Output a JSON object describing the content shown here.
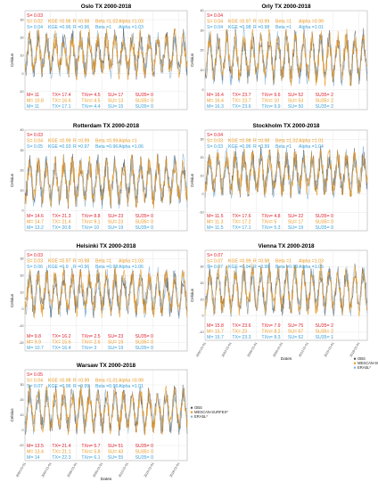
{
  "chart_data": [
    {
      "type": "line",
      "title": "Oslo TX 2000-2018",
      "ylabel": "Celsius",
      "ylim": [
        -20,
        35
      ],
      "yticks": [
        "30",
        "20",
        "10",
        "0",
        "-10"
      ],
      "x": [
        "2000-01-01",
        "2018-12-31"
      ],
      "top_stats": [
        [
          "S= 0.03"
        ],
        [
          "S= 0.02",
          "KGE =0.96",
          "R =0.98",
          "Beta =1.02",
          "Alpha =1.03"
        ],
        [
          "S= 0.04",
          "KGE =0.96",
          "R =0.96",
          "Beta =1",
          "Alpha =1.03"
        ]
      ],
      "bottom_stats": [
        [
          "M= 11",
          "TX= 17.4",
          "TXn= 4.5",
          "SU= 17",
          "SU35= 0"
        ],
        [
          "M= 10.8",
          "TX= 16.6",
          "TXn= 4.5",
          "SU= 13",
          "SU35= 0"
        ],
        [
          "M= 11",
          "TX= 17.1",
          "TXn= 4.4",
          "SU= 15",
          "SU35= 0"
        ]
      ],
      "series": [
        {
          "name": "OBS"
        },
        {
          "name": "MESCAN-SURFEX*"
        },
        {
          "name": "ERA5L*"
        }
      ]
    },
    {
      "type": "line",
      "title": "Orly TX 2000-2018",
      "ylabel": "Celsius",
      "ylim": [
        -10,
        40
      ],
      "yticks": [
        "40",
        "30",
        "20",
        "10",
        "0"
      ],
      "x": [
        "2000-01-01",
        "2018-12-31"
      ],
      "top_stats": [
        [
          "S= 0.04"
        ],
        [
          "S= 0.04",
          "KGE =0.97",
          "R =0.99",
          "Beta =1",
          "Alpha =0.99"
        ],
        [
          "S= 0.04",
          "KGE =0.98",
          "R =0.98",
          "Beta =1",
          "Alpha =1.01"
        ]
      ],
      "bottom_stats": [
        [
          "M= 16.4",
          "TX= 23.7",
          "TXn= 9.6",
          "SU= 52",
          "SU35= 2"
        ],
        [
          "M= 16.4",
          "TX= 23.7",
          "TXn= 10",
          "SU= 53",
          "SU35= 2"
        ],
        [
          "M= 16.3",
          "TX= 23.6",
          "TXn= 9.9",
          "SU= 50",
          "SU35= 2"
        ]
      ],
      "series": [
        {
          "name": "OBS"
        },
        {
          "name": "MESCAN-SURFEX*"
        },
        {
          "name": "ERA5L*"
        }
      ]
    },
    {
      "type": "line",
      "title": "Rotterdam TX 2000-2018",
      "ylabel": "Celsius",
      "ylim": [
        -10,
        40
      ],
      "yticks": [
        "40",
        "30",
        "20",
        "10",
        "0"
      ],
      "x": [
        "2000-01-01",
        "2018-12-31"
      ],
      "top_stats": [
        [
          "S= 0.03"
        ],
        [
          "S= 0.04",
          "KGE =0.99",
          "R =0.99",
          "Beta =0.99",
          "Alpha =1"
        ],
        [
          "S= 0.05",
          "KGE =0.93",
          "R =0.97",
          "Beta =0.96",
          "Alpha =1.06"
        ]
      ],
      "bottom_stats": [
        [
          "M= 14.6",
          "TX= 21.3",
          "TXn= 8.8",
          "SU= 23",
          "SU35= 0"
        ],
        [
          "M= 14.7",
          "TX= 21.4",
          "TXn= 9.1",
          "SU= 23",
          "SU35= 0"
        ],
        [
          "M= 13.2",
          "TX= 20.8",
          "TXn= 10",
          "SU= 19",
          "SU35= 0"
        ]
      ],
      "series": [
        {
          "name": "OBS"
        },
        {
          "name": "MESCAN-SURFEX*"
        },
        {
          "name": "ERA5L*"
        }
      ]
    },
    {
      "type": "line",
      "title": "Stockholm TX 2000-2018",
      "ylabel": "Celsius",
      "ylim": [
        -20,
        35
      ],
      "yticks": [
        "30",
        "20",
        "10",
        "0",
        "-10"
      ],
      "x": [
        "2000-01-01",
        "2018-12-31"
      ],
      "top_stats": [
        [
          "S= 0.04"
        ],
        [
          "S= 0.03",
          "KGE =0.98",
          "R =0.98",
          "Beta =1.02",
          "Alpha =1.01"
        ],
        [
          "S= 0.03",
          "KGE =0.96",
          "R =0.99",
          "Beta =1",
          "Alpha =1.04"
        ]
      ],
      "bottom_stats": [
        [
          "M= 11.5",
          "TX= 17.6",
          "TXn= 4.8",
          "SU= 22",
          "SU35= 0"
        ],
        [
          "M= 11.3",
          "TX= 17.2",
          "TXn= 5",
          "SU= 17",
          "SU35= 0"
        ],
        [
          "M= 11.5",
          "TX= 17.1",
          "TXn= 5.3",
          "SU= 19",
          "SU35= 0"
        ]
      ],
      "series": [
        {
          "name": "OBS"
        },
        {
          "name": "MESCAN-SURFEX*"
        },
        {
          "name": "ERA5L*"
        }
      ]
    },
    {
      "type": "line",
      "title": "Helsinki TX 2000-2018",
      "ylabel": "Celsius",
      "ylim": [
        -25,
        35
      ],
      "yticks": [
        "30",
        "20",
        "10",
        "0",
        "-10",
        "-20"
      ],
      "x": [
        "2000-01-01",
        "2018-12-31"
      ],
      "top_stats": [
        [
          "S= 0.03"
        ],
        [
          "S= 0.03",
          "KGE =0.97",
          "R =0.98",
          "Beta =1",
          "Alpha =1.03"
        ],
        [
          "S= 0.06",
          "KGE =0.9",
          "R =0.96",
          "Beta =0.98",
          "Alpha =1.06"
        ]
      ],
      "bottom_stats": [
        [
          "M= 9.8",
          "TX= 16.2",
          "TXn= 2.5",
          "SU= 23",
          "SU35= 0"
        ],
        [
          "M= 9.9",
          "TX= 15.6",
          "TXn= 2.6",
          "SU= 19",
          "SU35= 0"
        ],
        [
          "M= 10.7",
          "TX= 16.4",
          "TXn= 3",
          "SU= 19",
          "SU35= 0"
        ]
      ],
      "series": [
        {
          "name": "OBS"
        },
        {
          "name": "MESCAN-SURFEX*"
        },
        {
          "name": "ERA5L*"
        }
      ]
    },
    {
      "type": "line",
      "title": "Vienna TX 2000-2018",
      "ylabel": "Celsius",
      "ylim": [
        -15,
        40
      ],
      "yticks": [
        "30",
        "20",
        "10",
        "0",
        "-10"
      ],
      "x": [
        "2000-01-01",
        "2018-12-31"
      ],
      "top_stats": [
        [
          "S= 0.07"
        ],
        [
          "S= 0.07",
          "KGE =0.99",
          "R =0.98",
          "Beta =1",
          "Alpha =1.03"
        ],
        [
          "S= 0.07",
          "KGE =0.94",
          "R =0.98",
          "Beta =0.99",
          "Alpha =1.05"
        ]
      ],
      "bottom_stats": [
        [
          "M= 15.8",
          "TX= 23.6",
          "TXn= 7.9",
          "SU= 75",
          "SU35= 2"
        ],
        [
          "M= 15.7",
          "TX= 23",
          "TXn= 8.2",
          "SU= 67",
          "SU35= 2"
        ],
        [
          "M= 15.7",
          "TX= 23.3",
          "TXn= 8.3",
          "SU= 62",
          "SU35= 1"
        ]
      ],
      "series": [
        {
          "name": "OBS"
        },
        {
          "name": "MESCAN-SURFEX*"
        },
        {
          "name": "ERA5L*"
        }
      ]
    },
    {
      "type": "line",
      "title": "Warsaw TX 2000-2018",
      "ylabel": "Celsius",
      "ylim": [
        -20,
        40
      ],
      "yticks": [
        "30",
        "20",
        "10",
        "0",
        "-10"
      ],
      "x": [
        "2000-01-01",
        "2018-12-31"
      ],
      "top_stats": [
        [
          "S= 0.05"
        ],
        [
          "S= 0.04",
          "KGE =0.98",
          "R =0.99",
          "Beta =1.01",
          "Alpha =0.99"
        ],
        [
          "S= 0.07",
          "KGE =0.96",
          "R =0.99",
          "Beta =0.96",
          "Alpha =1.01"
        ]
      ],
      "bottom_stats": [
        [
          "M= 13.5",
          "TX= 21.4",
          "TXn= 5.7",
          "SU= 51",
          "SU35= 0"
        ],
        [
          "M= 13.4",
          "TX= 21.1",
          "TXn= 5.8",
          "SU= 43",
          "SU35= 0"
        ],
        [
          "M= 14",
          "TX= 22.3",
          "TXn= 6.1",
          "SU= 55",
          "SU35= 0"
        ]
      ],
      "series": [
        {
          "name": "OBS"
        },
        {
          "name": "MESCAN-SURFEX*"
        },
        {
          "name": "ERA5L*"
        }
      ]
    }
  ],
  "figure": {
    "xlabel": "Dates",
    "xticks": [
      "2000-01-01",
      "2003-01-01",
      "2006-01-01",
      "2009-01-01",
      "2012-01-01",
      "2015-01-01",
      "2018-01-01"
    ],
    "legend": [
      "OBS",
      "MESCAN-SURFEX*",
      "ERA5L*"
    ],
    "colors": {
      "obs": "#555555",
      "mescan": "#e8961e",
      "era5": "#7fb0d8",
      "row1": "#e0212e",
      "row2": "#e8961e",
      "row3": "#3aa0d8",
      "grid": "#e4e4e4"
    }
  }
}
